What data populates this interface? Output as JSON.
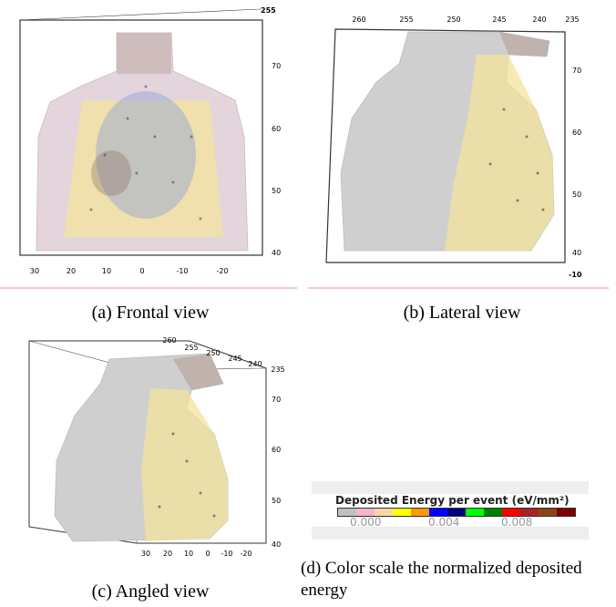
{
  "panels": [
    {
      "caption": "(a) Frontal view",
      "x_ticks": [
        "30",
        "20",
        "10",
        "0",
        "-10",
        "-20"
      ],
      "y_ticks": [
        "70",
        "60",
        "50",
        "40"
      ],
      "corner_label": "255"
    },
    {
      "caption": "(b) Lateral view",
      "x_ticks": [
        "260",
        "255",
        "250",
        "245",
        "240",
        "235"
      ],
      "y_ticks": [
        "70",
        "60",
        "50",
        "40"
      ],
      "corner_label": "-10"
    },
    {
      "caption": "(c) Angled view",
      "top_ticks": [
        "260",
        "255",
        "250",
        "245",
        "240",
        "235"
      ],
      "bottom_ticks": [
        "30",
        "20",
        "10",
        "0",
        "-10",
        "-20"
      ],
      "y_ticks": [
        "70",
        "60",
        "50",
        "40"
      ]
    }
  ],
  "color_scale": {
    "caption": "(d) Color scale the normalized deposited energy",
    "title": "Deposited Energy per event (eV/mm²)",
    "ticks": [
      "0.000",
      "0.004",
      "0.008"
    ],
    "colors": [
      "#c0c0c0",
      "#f4b6c8",
      "#f9d8a6",
      "#ffff00",
      "#ff9900",
      "#0000ff",
      "#000080",
      "#00ff00",
      "#008000",
      "#ff0000",
      "#aa2222",
      "#8b4513",
      "#800000"
    ]
  }
}
